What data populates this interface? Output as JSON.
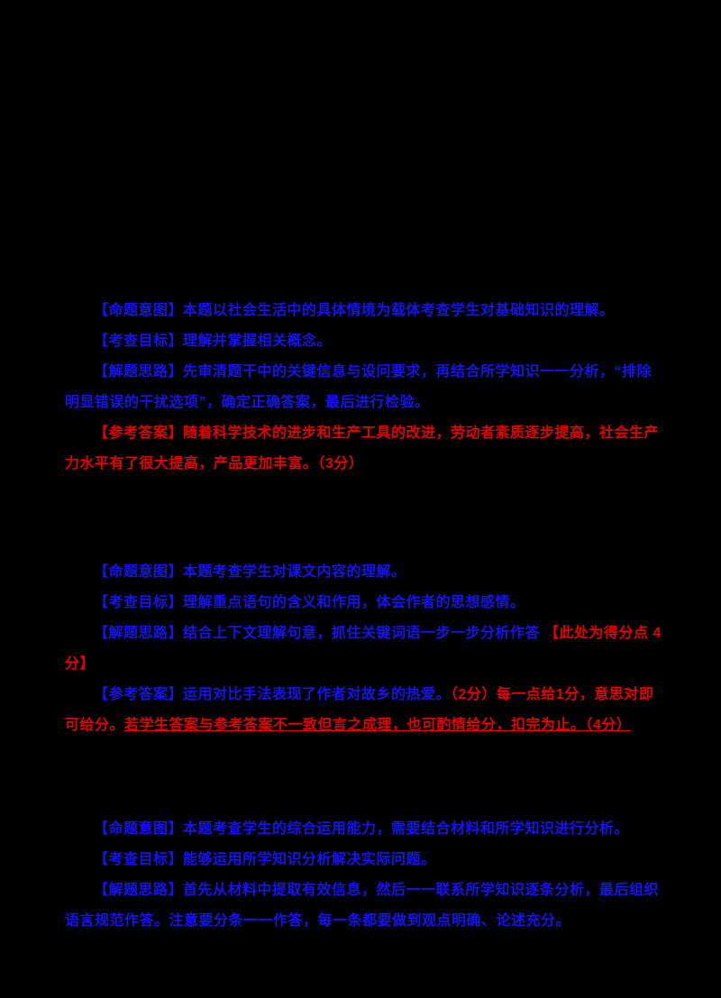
{
  "page": {
    "background": "#000000",
    "colors": {
      "blue": "#1414f0",
      "red": "#e60000"
    }
  },
  "blocks": [
    {
      "name": "question-analysis-1",
      "paragraphs": [
        {
          "segments": [
            {
              "color": "blue",
              "text": "【命题意图】本题以社会生活中的具体情境为载体考查学生对基础知识的理解。"
            }
          ]
        },
        {
          "segments": [
            {
              "color": "blue",
              "text": "【考查目标】理解并掌握相关概念。"
            }
          ]
        },
        {
          "segments": [
            {
              "color": "blue",
              "text": "【解题思路】先审清题干中的关键信息与设问要求，再结合所学知识一一分析，“排除明显错误的干扰选项”，确定正确答案，最后进行检验。"
            }
          ]
        },
        {
          "segments": [
            {
              "color": "red",
              "text": "【参考答案】随着科学技术的进步和生产工具的改进，劳动者素质逐步提高，社会生产力水平有了很大提高，产品更加丰富。（3分）"
            }
          ]
        }
      ]
    },
    {
      "name": "question-analysis-2",
      "paragraphs": [
        {
          "segments": [
            {
              "color": "blue",
              "text": "【命题意图】本题考查学生对课文内容的理解。"
            }
          ]
        },
        {
          "segments": [
            {
              "color": "blue",
              "text": "【考查目标】理解重点语句的含义和作用，体会作者的思想感情。"
            }
          ]
        },
        {
          "segments": [
            {
              "color": "blue",
              "text": "【解题思路】结合上下文理解句意，抓住关键词语一步一步分析作答 "
            },
            {
              "color": "red",
              "text": "【此处为得分点 4分】"
            }
          ]
        },
        {
          "segments": [
            {
              "color": "blue",
              "text": "【参考答案】运用对比手法表现了作者对故乡的热爱。"
            },
            {
              "color": "red",
              "text": "（2分）每一点给1分，意思对即可给分。"
            },
            {
              "color": "red",
              "underline": true,
              "text": "若学生答案与参考答案不一致但言之成理，也可酌情给分，扣完为止。（4分）"
            }
          ]
        }
      ]
    },
    {
      "name": "question-analysis-3",
      "paragraphs": [
        {
          "segments": [
            {
              "color": "blue",
              "text": "【命题意图】本题考查学生的综合运用能力，需要结合材料和所学知识进行分析。"
            }
          ]
        },
        {
          "segments": [
            {
              "color": "blue",
              "text": "【考查目标】能够运用所学知识分析解决实际问题。"
            }
          ]
        },
        {
          "segments": [
            {
              "color": "blue",
              "text": "【解题思路】首先从材料中提取有效信息，然后一一联系所学知识逐条分析，最后组织语言规范作答。注意要分条一一作答，每一条都要做到观点明确、论述充分。"
            }
          ]
        }
      ]
    }
  ]
}
